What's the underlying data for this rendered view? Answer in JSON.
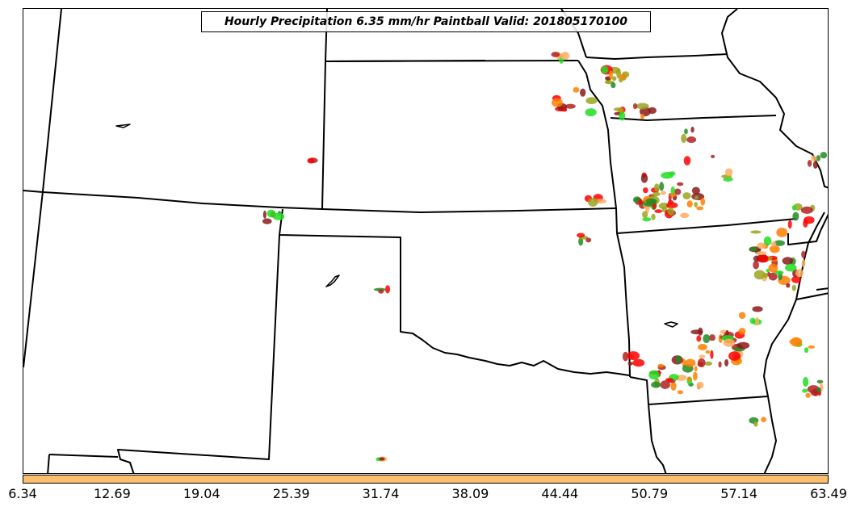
{
  "title": "Hourly Precipitation 6.35 mm/hr Paintball Valid: 201805170100",
  "colorbar": {
    "color": "#fdbf6f",
    "ticks": [
      "6.34",
      "12.69",
      "19.04",
      "25.39",
      "31.74",
      "38.09",
      "44.44",
      "50.79",
      "57.14",
      "63.49"
    ]
  },
  "paintball_colors": [
    "#ff0000",
    "#ff7f00",
    "#fdae61",
    "#9aa51c",
    "#228b22",
    "#22dd22",
    "#8b1a1a",
    "#b22222"
  ]
}
